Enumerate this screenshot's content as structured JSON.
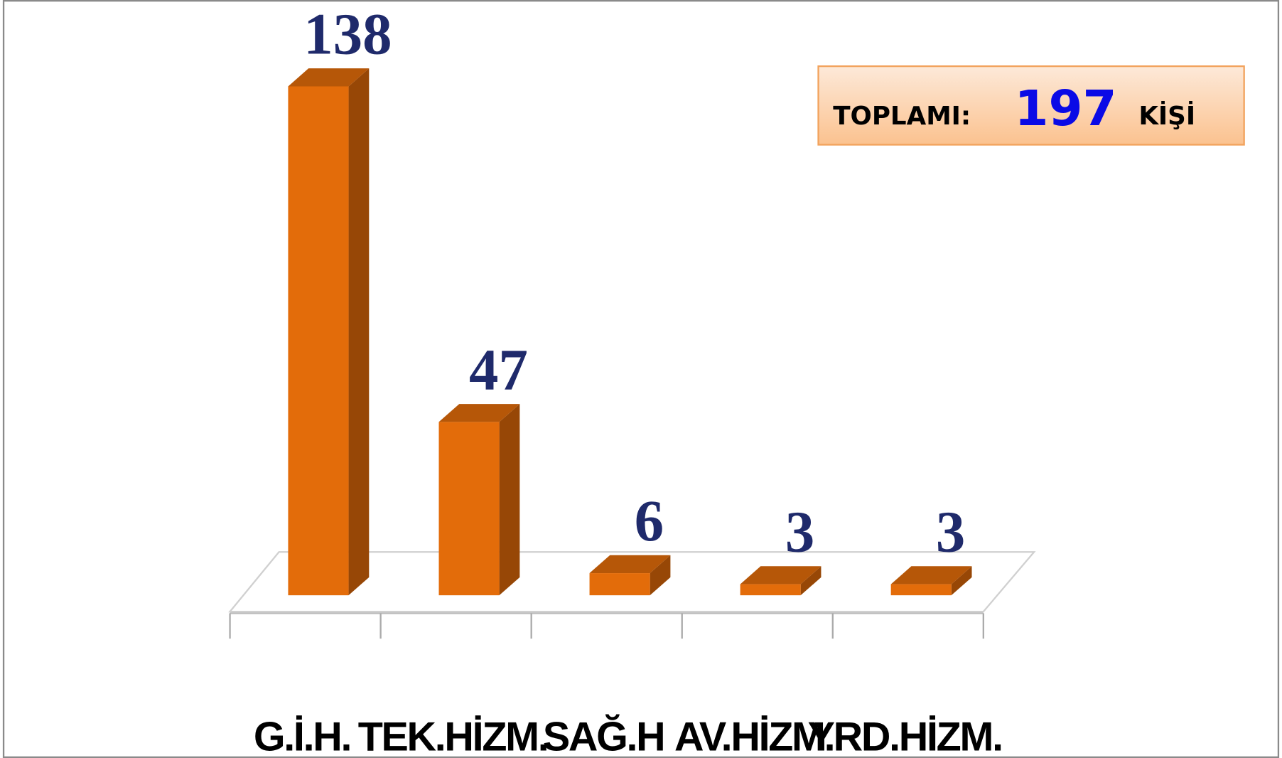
{
  "chart_data": {
    "type": "bar3d",
    "categories": [
      "G.İ.H.",
      "TEK.HİZM.",
      "SAĞ.H",
      "AV.HİZM.",
      "YRD.HİZM."
    ],
    "values": [
      138,
      47,
      6,
      3,
      3
    ],
    "color": "#e36c0a",
    "ylim": [
      0,
      140
    ],
    "annotation": {
      "label": "TOPLAMI:",
      "value": 197,
      "unit": "KİŞİ"
    }
  }
}
